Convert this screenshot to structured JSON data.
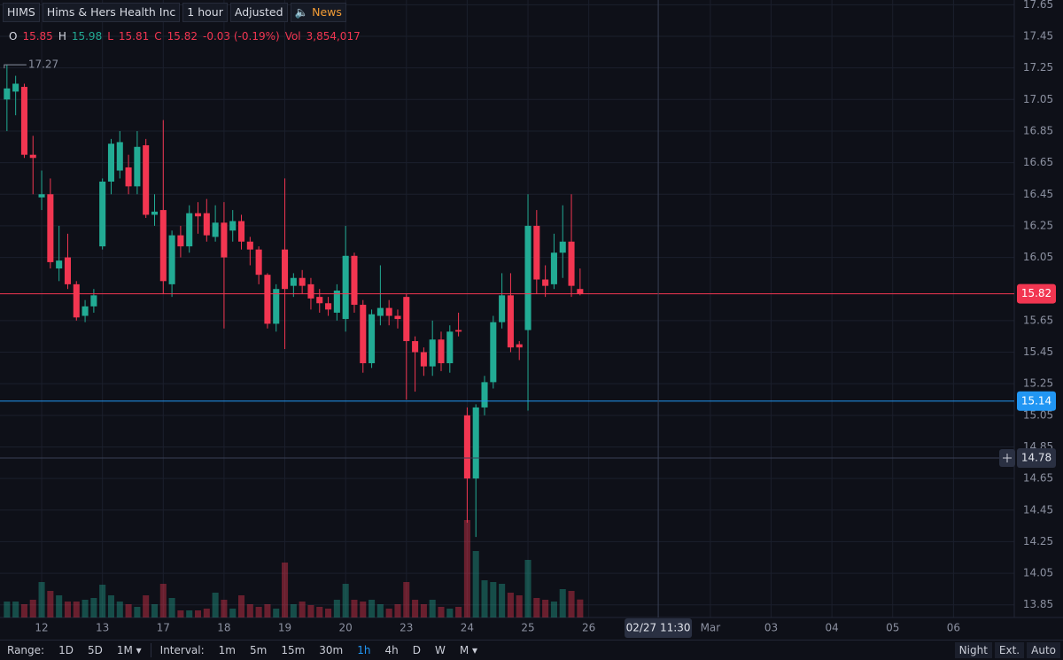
{
  "header": {
    "symbol": "HIMS",
    "name": "Hims & Hers Health Inc",
    "interval": "1 hour",
    "adjustment": "Adjusted",
    "news": "News"
  },
  "legend": {
    "o": "O",
    "h": "H",
    "l": "L",
    "c": "C",
    "change": "-0.03 (-0.19%)",
    "vol": "Vol",
    "vol_value": "3,854,017"
  },
  "toolbar": {
    "range_label": "Range:",
    "ranges": [
      "1D",
      "5D",
      "1M ▾"
    ],
    "interval_label": "Interval:",
    "intervals": [
      "1m",
      "5m",
      "15m",
      "30m",
      "1h",
      "4h",
      "D",
      "W",
      "M ▾"
    ],
    "modes": [
      "Night",
      "Ext.",
      "Auto"
    ]
  },
  "chart_data": {
    "type": "candlestick",
    "up_color": "#22ab94",
    "down_color": "#f23651",
    "grid": true,
    "x": [
      0,
      1,
      2,
      3,
      4,
      5,
      6,
      7,
      8,
      9,
      10,
      11,
      12,
      13,
      14,
      15,
      16,
      17,
      18,
      19,
      20,
      21,
      22,
      23,
      24,
      25,
      26,
      27,
      28,
      29,
      30,
      31,
      32,
      33,
      34,
      35,
      36,
      37,
      38,
      39,
      40,
      41,
      42,
      43,
      44,
      45,
      46,
      47,
      48,
      49,
      50,
      51,
      52,
      53,
      54,
      55,
      56,
      57,
      58,
      59,
      60,
      61,
      62,
      63,
      64,
      65,
      66
    ],
    "open": [
      17.05,
      17.1,
      17.13,
      16.7,
      16.43,
      16.45,
      15.98,
      16.05,
      15.88,
      15.68,
      15.74,
      16.12,
      16.53,
      16.6,
      16.62,
      16.5,
      16.76,
      16.32,
      16.35,
      15.88,
      16.19,
      16.12,
      16.33,
      16.33,
      16.18,
      16.27,
      16.22,
      16.28,
      16.15,
      16.1,
      15.94,
      15.63,
      16.1,
      15.87,
      15.92,
      15.88,
      15.8,
      15.76,
      15.7,
      15.66,
      16.06,
      15.75,
      15.38,
      15.68,
      15.73,
      15.68,
      15.8,
      15.52,
      15.45,
      15.36,
      15.53,
      15.38,
      15.59,
      15.05,
      14.65,
      15.1,
      15.26,
      15.64,
      15.81,
      15.5,
      15.59,
      16.25,
      15.91,
      15.88,
      16.08,
      16.15,
      15.85
    ],
    "high": [
      17.27,
      17.2,
      17.15,
      16.82,
      16.6,
      16.55,
      16.25,
      16.2,
      15.9,
      15.78,
      15.85,
      16.55,
      16.8,
      16.85,
      16.7,
      16.85,
      16.8,
      16.45,
      16.92,
      16.22,
      16.25,
      16.38,
      16.4,
      16.42,
      16.38,
      16.4,
      16.35,
      16.32,
      16.18,
      16.12,
      15.95,
      15.88,
      16.55,
      15.95,
      15.97,
      15.92,
      15.85,
      15.8,
      15.88,
      16.25,
      16.08,
      15.78,
      15.72,
      16.0,
      15.78,
      15.72,
      15.82,
      15.55,
      15.48,
      15.65,
      15.58,
      15.62,
      15.7,
      15.1,
      15.12,
      15.3,
      15.68,
      15.95,
      15.95,
      15.52,
      16.45,
      16.35,
      16.0,
      16.2,
      16.38,
      16.45,
      15.98
    ],
    "low": [
      16.85,
      16.95,
      16.68,
      16.45,
      16.35,
      15.98,
      15.9,
      15.85,
      15.65,
      15.64,
      15.7,
      16.1,
      16.45,
      16.55,
      16.45,
      16.45,
      16.3,
      16.25,
      15.82,
      15.8,
      16.05,
      16.08,
      16.2,
      16.15,
      16.15,
      15.6,
      16.15,
      16.1,
      16.0,
      15.88,
      15.6,
      15.58,
      15.47,
      15.8,
      15.82,
      15.72,
      15.7,
      15.68,
      15.65,
      15.58,
      15.7,
      15.32,
      15.35,
      15.62,
      15.62,
      15.6,
      15.15,
      15.2,
      15.3,
      15.3,
      15.33,
      15.32,
      15.55,
      14.37,
      14.28,
      15.05,
      15.22,
      15.6,
      15.45,
      15.4,
      15.08,
      15.82,
      15.8,
      15.85,
      15.92,
      15.8,
      15.81
    ],
    "close": [
      17.12,
      17.15,
      16.7,
      16.68,
      16.45,
      16.02,
      16.03,
      15.88,
      15.67,
      15.74,
      15.81,
      16.53,
      16.77,
      16.78,
      16.5,
      16.75,
      16.32,
      16.34,
      15.9,
      16.19,
      16.12,
      16.33,
      16.31,
      16.19,
      16.27,
      16.05,
      16.28,
      16.15,
      16.1,
      15.94,
      15.63,
      15.85,
      15.85,
      15.92,
      15.87,
      15.79,
      15.76,
      15.72,
      15.84,
      16.06,
      15.75,
      15.38,
      15.69,
      15.73,
      15.68,
      15.66,
      15.52,
      15.45,
      15.36,
      15.53,
      15.38,
      15.58,
      15.58,
      14.65,
      15.1,
      15.26,
      15.64,
      15.81,
      15.48,
      15.48,
      16.25,
      15.91,
      15.87,
      16.08,
      16.15,
      15.87,
      15.82
    ],
    "volume": [
      3420000,
      3420000,
      2850000,
      3800000,
      7600000,
      5700000,
      4750000,
      3420000,
      3420000,
      3800000,
      4180000,
      7030000,
      4750000,
      3420000,
      2850000,
      2280000,
      4750000,
      2850000,
      7220000,
      4180000,
      1520000,
      1520000,
      1520000,
      1900000,
      5320000,
      3800000,
      1900000,
      4750000,
      2850000,
      2280000,
      2850000,
      1900000,
      11780000,
      2850000,
      3420000,
      2660000,
      2280000,
      1900000,
      3800000,
      7220000,
      3800000,
      3420000,
      3800000,
      2850000,
      1900000,
      2850000,
      7600000,
      3800000,
      2850000,
      3800000,
      2280000,
      1900000,
      2280000,
      20900000,
      14250000,
      7980000,
      7600000,
      7220000,
      5320000,
      4750000,
      12350000,
      4180000,
      3800000,
      3420000,
      6080000,
      5700000,
      3854017
    ],
    "xlim": [
      -0.8,
      116
    ],
    "xticks": [
      {
        "value": 4,
        "label": "12"
      },
      {
        "value": 11,
        "label": "13"
      },
      {
        "value": 18,
        "label": "17"
      },
      {
        "value": 25,
        "label": "18"
      },
      {
        "value": 32,
        "label": "19"
      },
      {
        "value": 39,
        "label": "20"
      },
      {
        "value": 46,
        "label": "23"
      },
      {
        "value": 53,
        "label": "24"
      },
      {
        "value": 60,
        "label": "25"
      },
      {
        "value": 67,
        "label": "26"
      },
      {
        "value": 81,
        "label": "Mar"
      },
      {
        "value": 88,
        "label": "03"
      },
      {
        "value": 95,
        "label": "04"
      },
      {
        "value": 102,
        "label": "05"
      },
      {
        "value": 109,
        "label": "06"
      }
    ],
    "ylim": [
      13.77,
      17.68
    ],
    "yticks": [
      17.65,
      17.45,
      17.25,
      17.05,
      16.85,
      16.65,
      16.45,
      16.25,
      16.05,
      15.65,
      15.45,
      15.25,
      15.05,
      14.85,
      14.65,
      14.45,
      14.25,
      14.05,
      13.85
    ],
    "price_lines": [
      {
        "value": 15.14,
        "color": "#2196f3"
      }
    ],
    "crosshair": {
      "x": 75,
      "y": 14.78,
      "label": "02/27 11:30"
    }
  }
}
